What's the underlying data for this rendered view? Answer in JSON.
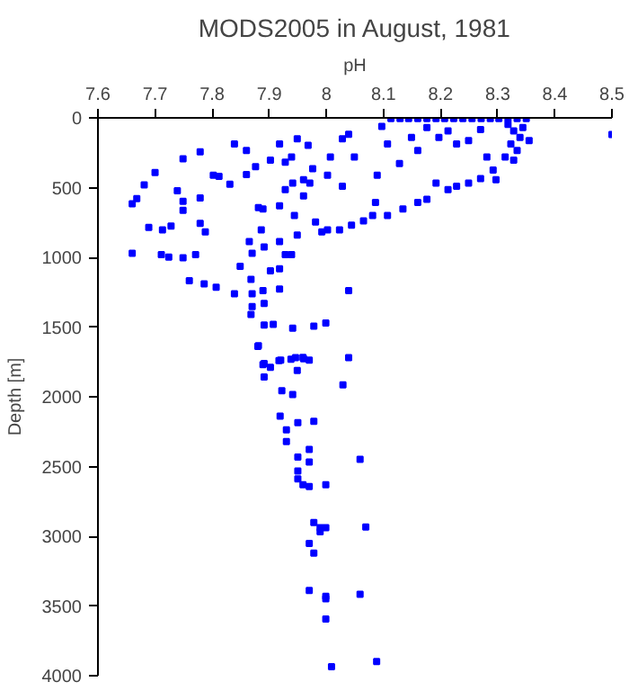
{
  "chart_data": {
    "type": "scatter",
    "title": "MODS2005 in August, 1981",
    "xlabel": "pH",
    "ylabel": "Depth [m]",
    "xlim": [
      7.6,
      8.5
    ],
    "xticks": [
      7.6,
      7.7,
      7.8,
      7.9,
      8,
      8.1,
      8.2,
      8.3,
      8.4,
      8.5
    ],
    "ylim": [
      4000,
      0
    ],
    "yticks": [
      0,
      500,
      1000,
      1500,
      2000,
      2500,
      3000,
      3500,
      4000
    ],
    "grid": false,
    "marker": "square",
    "series": [
      {
        "color": "#0000ff",
        "x": [
          8.113,
          8.129,
          8.144,
          8.16,
          8.176,
          8.192,
          8.207,
          8.223,
          8.239,
          8.255,
          8.271,
          8.287,
          8.302,
          8.318,
          8.334,
          8.35,
          8.318,
          8.328,
          8.339,
          8.323,
          8.334,
          8.344,
          8.355,
          8.313,
          8.328,
          8.5,
          8.097,
          8.107,
          8.128,
          8.149,
          8.16,
          8.176,
          8.197,
          8.213,
          8.228,
          8.249,
          8.27,
          8.281,
          8.292,
          8.297,
          8.27,
          8.249,
          8.228,
          8.213,
          8.192,
          8.176,
          8.16,
          8.134,
          8.107,
          8.081,
          8.065,
          8.044,
          8.023,
          7.992,
          8.086,
          8.089,
          8.049,
          8.039,
          8.028,
          7.949,
          7.968,
          7.918,
          7.86,
          7.839,
          7.779,
          7.749,
          7.7,
          7.681,
          7.66,
          7.668,
          7.689,
          7.66,
          7.713,
          7.728,
          7.711,
          7.724,
          7.749,
          7.771,
          7.739,
          7.749,
          7.749,
          7.779,
          7.779,
          7.788,
          7.802,
          7.812,
          7.831,
          7.86,
          7.876,
          7.902,
          7.928,
          7.939,
          7.96,
          7.941,
          7.971,
          7.928,
          7.96,
          8.002,
          8.028,
          8.007,
          7.976,
          7.881,
          7.889,
          7.918,
          7.944,
          7.981,
          8.002,
          7.886,
          7.865,
          7.891,
          7.918,
          7.949,
          7.939,
          7.928,
          7.87,
          7.849,
          7.76,
          7.786,
          7.807,
          7.839,
          7.868,
          7.902,
          7.918,
          7.87,
          7.889,
          7.918,
          7.891,
          7.87,
          7.868,
          7.891,
          7.907,
          7.941,
          7.978,
          7.999,
          8.039,
          7.881,
          7.891,
          7.902,
          7.92,
          7.946,
          7.96,
          7.97,
          8.039,
          7.88,
          7.917,
          7.938,
          7.959,
          7.889,
          7.891,
          7.949,
          8.029,
          7.922,
          7.941,
          7.919,
          7.95,
          7.978,
          7.93,
          7.93,
          7.97,
          7.95,
          7.97,
          8.059,
          7.95,
          7.95,
          7.959,
          7.97,
          7.999,
          7.978,
          7.989,
          7.999,
          7.989,
          8.069,
          7.97,
          7.978,
          7.97,
          7.999,
          7.999,
          8.059,
          7.999,
          8.009,
          8.088
        ],
        "values": [
          5,
          5,
          5,
          5,
          5,
          5,
          5,
          5,
          5,
          5,
          5,
          5,
          5,
          5,
          5,
          5,
          47,
          93,
          140,
          187,
          234,
          70,
          163,
          280,
          304,
          120,
          61,
          187,
          327,
          140,
          234,
          70,
          140,
          93,
          187,
          163,
          84,
          280,
          374,
          444,
          435,
          467,
          490,
          514,
          467,
          584,
          607,
          654,
          700,
          700,
          738,
          770,
          803,
          817,
          607,
          411,
          280,
          117,
          150,
          150,
          196,
          187,
          234,
          187,
          243,
          294,
          392,
          481,
          616,
          579,
          785,
          971,
          803,
          775,
          980,
          999,
          1004,
          980,
          523,
          598,
          663,
          574,
          757,
          817,
          411,
          420,
          476,
          406,
          350,
          304,
          318,
          280,
          444,
          467,
          467,
          514,
          560,
          411,
          490,
          280,
          364,
          644,
          654,
          630,
          700,
          747,
          803,
          803,
          887,
          925,
          887,
          840,
          980,
          980,
          971,
          1065,
          1168,
          1191,
          1214,
          1261,
          1158,
          1097,
          1083,
          1261,
          1238,
          1228,
          1331,
          1354,
          1410,
          1485,
          1480,
          1508,
          1494,
          1471,
          1238,
          1634,
          1761,
          1789,
          1737,
          1719,
          1728,
          1737,
          1719,
          1638,
          1741,
          1731,
          1717,
          1769,
          1858,
          1811,
          1914,
          1956,
          1984,
          2138,
          2186,
          2176,
          2237,
          2321,
          2377,
          2433,
          2467,
          2448,
          2532,
          2588,
          2630,
          2644,
          2630,
          2902,
          2939,
          2939,
          2968,
          2934,
          3051,
          3121,
          3388,
          3430,
          3449,
          3416,
          3594,
          3935,
          3899
        ]
      }
    ]
  }
}
